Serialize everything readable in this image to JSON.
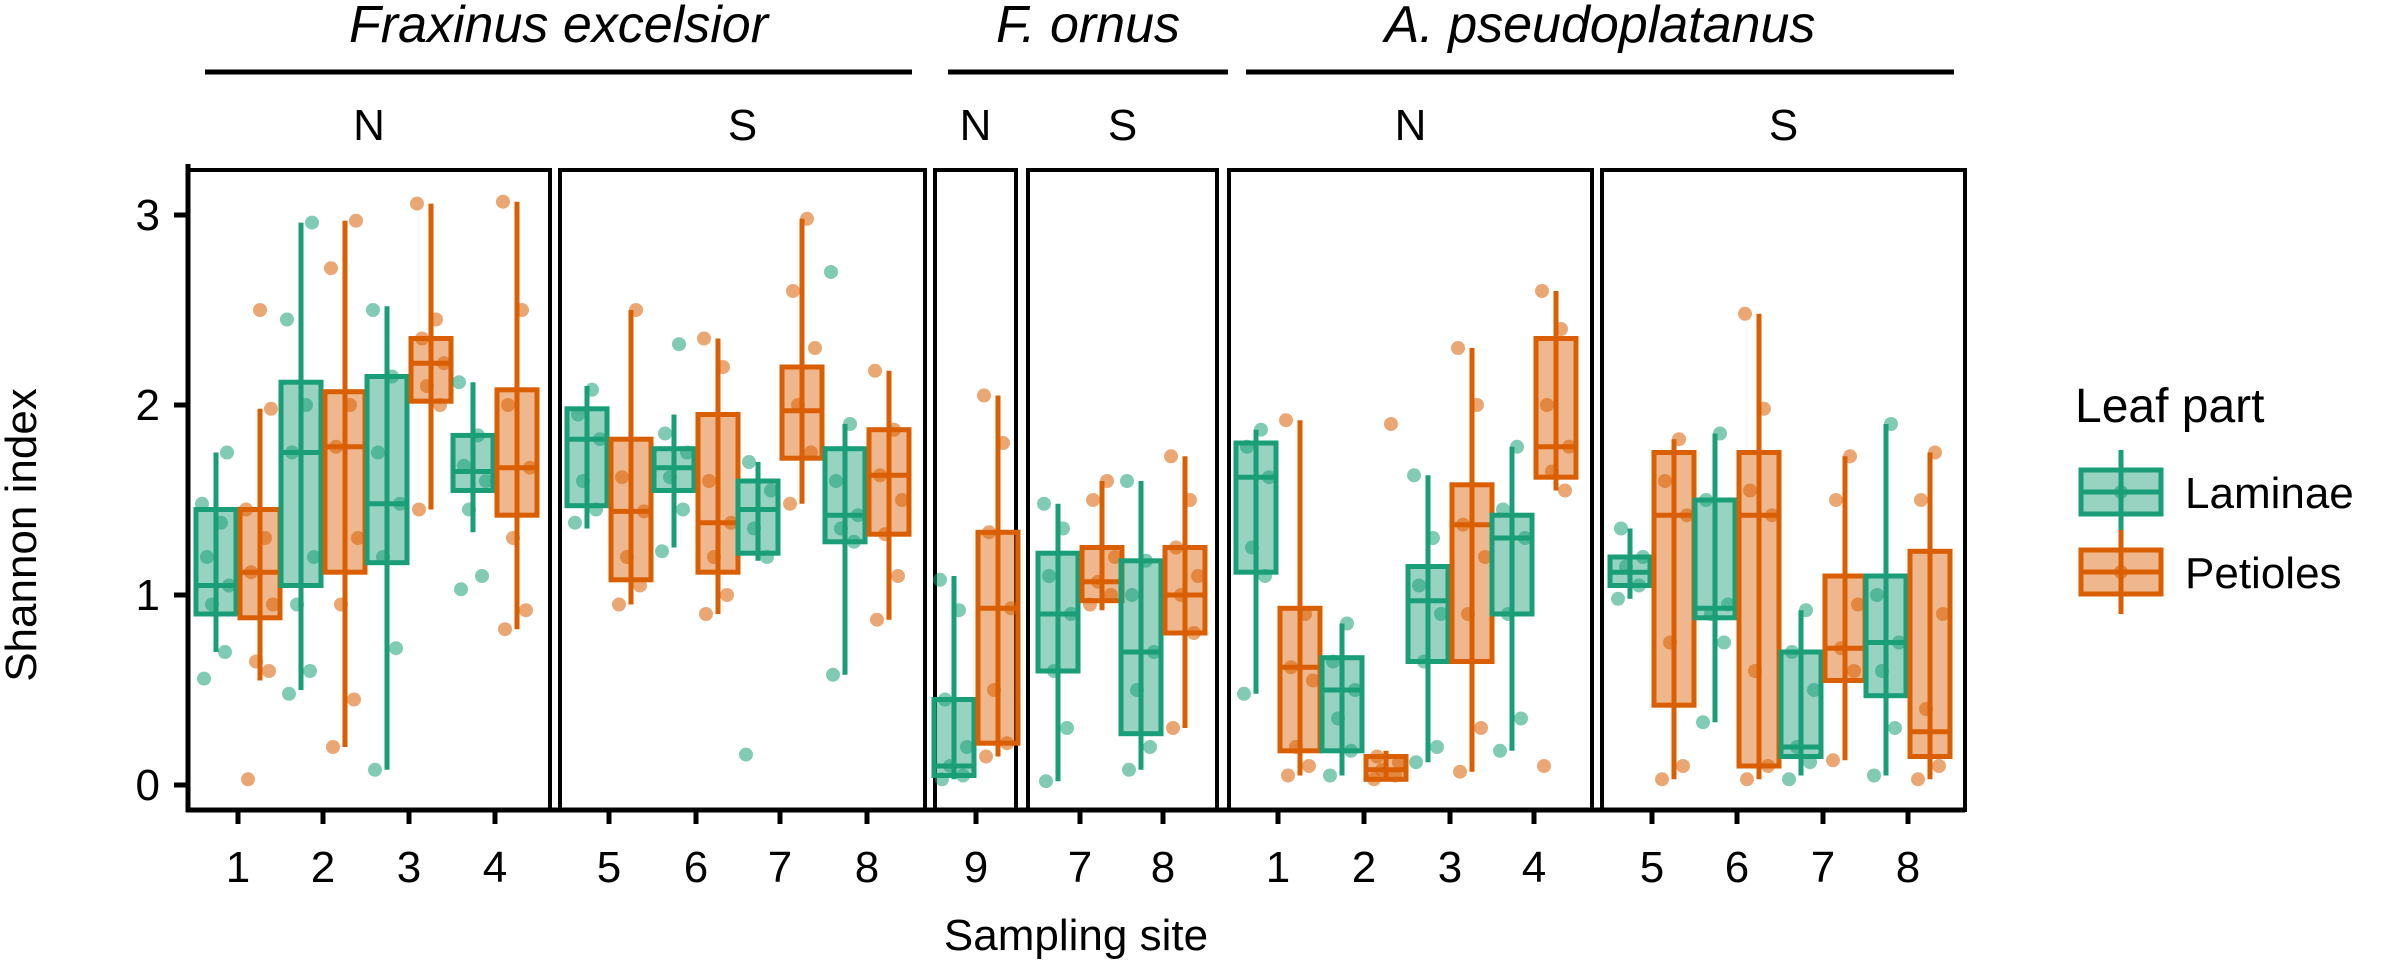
{
  "chart_data": {
    "type": "boxplot",
    "xlabel": "Sampling site",
    "ylabel": "Shannon index",
    "ylim": [
      -0.1,
      3.25
    ],
    "yticks": [
      0,
      1,
      2,
      3
    ],
    "legend": {
      "title": "Leaf part",
      "position": "right",
      "entries": [
        {
          "name": "Laminae",
          "color": "#1a9e77"
        },
        {
          "name": "Petioles",
          "color": "#d95f02"
        }
      ]
    },
    "species": [
      {
        "name": "Fraxinus excelsior",
        "panels": [
          0,
          1
        ]
      },
      {
        "name": "F. ornus",
        "panels": [
          2,
          3
        ]
      },
      {
        "name": "A. pseudoplatanus",
        "panels": [
          4,
          5
        ]
      }
    ],
    "panels": [
      {
        "label": "N",
        "sites": [
          {
            "site": "1",
            "laminae": {
              "min": 0.7,
              "q1": 0.9,
              "median": 1.05,
              "q3": 1.45,
              "max": 1.75,
              "points": [
                0.56,
                0.7,
                0.95,
                1.05,
                1.2,
                1.38,
                1.48,
                1.75
              ]
            },
            "petioles": {
              "min": 0.55,
              "q1": 0.88,
              "median": 1.12,
              "q3": 1.45,
              "max": 1.98,
              "points": [
                0.03,
                0.6,
                0.65,
                0.95,
                1.12,
                1.3,
                1.45,
                1.98,
                2.5
              ]
            }
          },
          {
            "site": "2",
            "laminae": {
              "min": 0.5,
              "q1": 1.05,
              "median": 1.75,
              "q3": 2.12,
              "max": 2.96,
              "points": [
                0.48,
                0.6,
                0.95,
                1.2,
                1.75,
                2.0,
                2.45,
                2.96
              ]
            },
            "petioles": {
              "min": 0.2,
              "q1": 1.12,
              "median": 1.78,
              "q3": 2.07,
              "max": 2.97,
              "points": [
                0.2,
                0.45,
                0.95,
                1.3,
                1.78,
                2.0,
                2.72,
                2.97
              ]
            }
          },
          {
            "site": "3",
            "laminae": {
              "min": 0.08,
              "q1": 1.17,
              "median": 1.48,
              "q3": 2.15,
              "max": 2.52,
              "points": [
                0.08,
                0.72,
                1.2,
                1.48,
                1.75,
                2.15,
                2.5
              ]
            },
            "petioles": {
              "min": 1.45,
              "q1": 2.02,
              "median": 2.22,
              "q3": 2.35,
              "max": 3.06,
              "points": [
                1.45,
                2.0,
                2.1,
                2.22,
                2.35,
                2.45,
                3.06
              ]
            }
          },
          {
            "site": "4",
            "laminae": {
              "min": 1.33,
              "q1": 1.55,
              "median": 1.65,
              "q3": 1.84,
              "max": 2.12,
              "points": [
                1.03,
                1.1,
                1.45,
                1.6,
                1.68,
                1.84,
                2.12
              ]
            },
            "petioles": {
              "min": 0.82,
              "q1": 1.42,
              "median": 1.67,
              "q3": 2.08,
              "max": 3.07,
              "points": [
                0.82,
                0.92,
                1.3,
                1.67,
                2.0,
                2.5,
                3.07
              ]
            }
          }
        ]
      },
      {
        "label": "S",
        "sites": [
          {
            "site": "5",
            "laminae": {
              "min": 1.35,
              "q1": 1.47,
              "median": 1.82,
              "q3": 1.98,
              "max": 2.1,
              "points": [
                1.38,
                1.45,
                1.6,
                1.82,
                1.95,
                2.08
              ]
            },
            "petioles": {
              "min": 0.95,
              "q1": 1.08,
              "median": 1.44,
              "q3": 1.82,
              "max": 2.5,
              "points": [
                0.95,
                1.05,
                1.2,
                1.44,
                1.62,
                2.5
              ]
            }
          },
          {
            "site": "6",
            "laminae": {
              "min": 1.25,
              "q1": 1.55,
              "median": 1.67,
              "q3": 1.77,
              "max": 1.95,
              "points": [
                1.23,
                1.45,
                1.62,
                1.75,
                1.85,
                2.32
              ]
            },
            "petioles": {
              "min": 0.9,
              "q1": 1.12,
              "median": 1.38,
              "q3": 1.95,
              "max": 2.35,
              "points": [
                0.9,
                1.0,
                1.2,
                1.38,
                1.6,
                2.2,
                2.35
              ]
            }
          },
          {
            "site": "7",
            "laminae": {
              "min": 1.18,
              "q1": 1.22,
              "median": 1.45,
              "q3": 1.6,
              "max": 1.7,
              "points": [
                0.16,
                1.2,
                1.35,
                1.55,
                1.7
              ]
            },
            "petioles": {
              "min": 1.48,
              "q1": 1.72,
              "median": 1.97,
              "q3": 2.2,
              "max": 2.98,
              "points": [
                1.48,
                1.75,
                2.0,
                2.3,
                2.6,
                2.98
              ]
            }
          },
          {
            "site": "8",
            "laminae": {
              "min": 0.58,
              "q1": 1.28,
              "median": 1.42,
              "q3": 1.77,
              "max": 1.9,
              "points": [
                0.58,
                1.28,
                1.35,
                1.42,
                1.6,
                1.9,
                2.7
              ]
            },
            "petioles": {
              "min": 0.87,
              "q1": 1.32,
              "median": 1.63,
              "q3": 1.87,
              "max": 2.18,
              "points": [
                0.87,
                1.1,
                1.32,
                1.5,
                1.63,
                1.87,
                2.18
              ]
            }
          }
        ]
      },
      {
        "label": "N",
        "sites": [
          {
            "site": "9",
            "laminae": {
              "min": 0.03,
              "q1": 0.05,
              "median": 0.1,
              "q3": 0.45,
              "max": 1.1,
              "points": [
                0.03,
                0.05,
                0.1,
                0.2,
                0.45,
                0.92,
                1.08
              ]
            },
            "petioles": {
              "min": 0.15,
              "q1": 0.22,
              "median": 0.93,
              "q3": 1.33,
              "max": 2.05,
              "points": [
                0.15,
                0.22,
                0.5,
                0.93,
                1.33,
                1.8,
                2.05
              ]
            }
          }
        ]
      },
      {
        "label": "S",
        "sites": [
          {
            "site": "7",
            "laminae": {
              "min": 0.02,
              "q1": 0.6,
              "median": 0.9,
              "q3": 1.22,
              "max": 1.48,
              "points": [
                0.02,
                0.3,
                0.6,
                0.9,
                1.1,
                1.35,
                1.48
              ]
            },
            "petioles": {
              "min": 0.92,
              "q1": 0.97,
              "median": 1.07,
              "q3": 1.25,
              "max": 1.6,
              "points": [
                0.95,
                1.0,
                1.07,
                1.2,
                1.5,
                1.6
              ]
            }
          },
          {
            "site": "8",
            "laminae": {
              "min": 0.08,
              "q1": 0.27,
              "median": 0.7,
              "q3": 1.18,
              "max": 1.6,
              "points": [
                0.08,
                0.2,
                0.5,
                0.7,
                1.0,
                1.18,
                1.6
              ]
            },
            "petioles": {
              "min": 0.3,
              "q1": 0.8,
              "median": 1.0,
              "q3": 1.25,
              "max": 1.73,
              "points": [
                0.3,
                0.8,
                1.0,
                1.1,
                1.25,
                1.5,
                1.73
              ]
            }
          }
        ]
      },
      {
        "label": "N",
        "sites": [
          {
            "site": "1",
            "laminae": {
              "min": 0.48,
              "q1": 1.12,
              "median": 1.62,
              "q3": 1.8,
              "max": 1.87,
              "points": [
                0.48,
                1.1,
                1.25,
                1.62,
                1.78,
                1.87
              ]
            },
            "petioles": {
              "min": 0.05,
              "q1": 0.18,
              "median": 0.62,
              "q3": 0.93,
              "max": 1.92,
              "points": [
                0.05,
                0.1,
                0.2,
                0.55,
                0.62,
                0.9,
                1.92
              ]
            }
          },
          {
            "site": "2",
            "laminae": {
              "min": 0.05,
              "q1": 0.18,
              "median": 0.5,
              "q3": 0.67,
              "max": 0.85,
              "points": [
                0.05,
                0.18,
                0.35,
                0.5,
                0.65,
                0.85
              ]
            },
            "petioles": {
              "min": 0.02,
              "q1": 0.03,
              "median": 0.08,
              "q3": 0.15,
              "max": 0.18,
              "points": [
                0.03,
                0.05,
                0.08,
                0.12,
                0.15,
                1.9
              ]
            }
          },
          {
            "site": "3",
            "laminae": {
              "min": 0.12,
              "q1": 0.65,
              "median": 0.97,
              "q3": 1.15,
              "max": 1.63,
              "points": [
                0.12,
                0.2,
                0.65,
                0.9,
                1.05,
                1.3,
                1.63
              ]
            },
            "petioles": {
              "min": 0.07,
              "q1": 0.65,
              "median": 1.37,
              "q3": 1.58,
              "max": 2.3,
              "points": [
                0.07,
                0.3,
                0.9,
                1.2,
                1.37,
                2.0,
                2.3
              ]
            }
          },
          {
            "site": "4",
            "laminae": {
              "min": 0.18,
              "q1": 0.9,
              "median": 1.3,
              "q3": 1.42,
              "max": 1.78,
              "points": [
                0.18,
                0.35,
                0.9,
                1.3,
                1.45,
                1.78
              ]
            },
            "petioles": {
              "min": 1.55,
              "q1": 1.62,
              "median": 1.78,
              "q3": 2.35,
              "max": 2.6,
              "points": [
                0.1,
                1.55,
                1.65,
                1.78,
                2.0,
                2.4,
                2.6
              ]
            }
          }
        ]
      },
      {
        "label": "S",
        "sites": [
          {
            "site": "5",
            "laminae": {
              "min": 0.98,
              "q1": 1.05,
              "median": 1.12,
              "q3": 1.2,
              "max": 1.35,
              "points": [
                0.98,
                1.05,
                1.15,
                1.2,
                1.35
              ]
            },
            "petioles": {
              "min": 0.03,
              "q1": 0.42,
              "median": 1.42,
              "q3": 1.75,
              "max": 1.82,
              "points": [
                0.03,
                0.1,
                0.75,
                1.42,
                1.6,
                1.82
              ]
            }
          },
          {
            "site": "6",
            "laminae": {
              "min": 0.33,
              "q1": 0.88,
              "median": 0.93,
              "q3": 1.5,
              "max": 1.85,
              "points": [
                0.33,
                0.75,
                0.9,
                0.95,
                1.5,
                1.85
              ]
            },
            "petioles": {
              "min": 0.03,
              "q1": 0.1,
              "median": 1.42,
              "q3": 1.75,
              "max": 2.48,
              "points": [
                0.03,
                0.1,
                0.6,
                1.42,
                1.55,
                1.98,
                2.48
              ]
            }
          },
          {
            "site": "7",
            "laminae": {
              "min": 0.05,
              "q1": 0.15,
              "median": 0.2,
              "q3": 0.7,
              "max": 0.92,
              "points": [
                0.03,
                0.12,
                0.2,
                0.5,
                0.7,
                0.92
              ]
            },
            "petioles": {
              "min": 0.13,
              "q1": 0.55,
              "median": 0.72,
              "q3": 1.1,
              "max": 1.73,
              "points": [
                0.13,
                0.6,
                0.72,
                0.95,
                1.5,
                1.73
              ]
            }
          },
          {
            "site": "8",
            "laminae": {
              "min": 0.05,
              "q1": 0.47,
              "median": 0.75,
              "q3": 1.1,
              "max": 1.9,
              "points": [
                0.05,
                0.3,
                0.6,
                0.75,
                1.0,
                1.9
              ]
            },
            "petioles": {
              "min": 0.03,
              "q1": 0.15,
              "median": 0.28,
              "q3": 1.23,
              "max": 1.75,
              "points": [
                0.03,
                0.1,
                0.4,
                0.9,
                1.5,
                1.75
              ]
            }
          }
        ]
      }
    ]
  }
}
